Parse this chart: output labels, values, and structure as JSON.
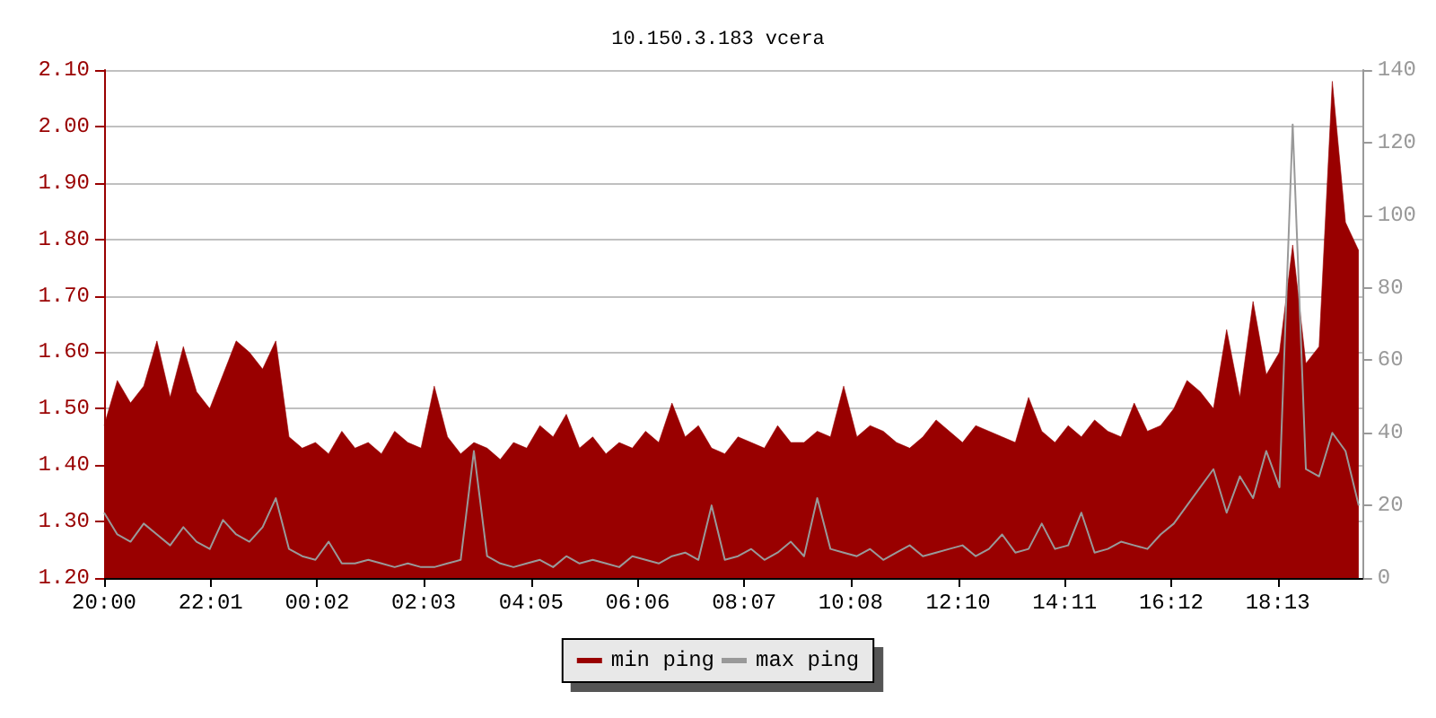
{
  "chart_data": {
    "type": "area",
    "title": "10.150.3.183 vcera",
    "x": [
      "--01-01T20:00",
      "--01-01T20:15",
      "--01-01T20:30",
      "--01-01T20:45",
      "--01-01T21:00",
      "--01-01T21:15",
      "--01-01T21:30",
      "--01-01T21:45",
      "--01-01T22:00",
      "--01-01T22:15",
      "--01-01T22:30",
      "--01-01T22:45",
      "--01-01T23:00",
      "--01-01T23:15",
      "--01-01T23:30",
      "--01-01T23:45",
      "--01-02T00:00",
      "--01-02T00:15",
      "--01-02T00:30",
      "--01-02T00:45",
      "--01-02T01:00",
      "--01-02T01:15",
      "--01-02T01:30",
      "--01-02T01:45",
      "--01-02T02:00",
      "--01-02T02:15",
      "--01-02T02:30",
      "--01-02T02:45",
      "--01-02T03:00",
      "--01-02T03:15",
      "--01-02T03:30",
      "--01-02T03:45",
      "--01-02T04:00",
      "--01-02T04:15",
      "--01-02T04:30",
      "--01-02T04:45",
      "--01-02T05:00",
      "--01-02T05:15",
      "--01-02T05:30",
      "--01-02T05:45",
      "--01-02T06:00",
      "--01-02T06:15",
      "--01-02T06:30",
      "--01-02T06:45",
      "--01-02T07:00",
      "--01-02T07:15",
      "--01-02T07:30",
      "--01-02T07:45",
      "--01-02T08:00",
      "--01-02T08:15",
      "--01-02T08:30",
      "--01-02T08:45",
      "--01-02T09:00",
      "--01-02T09:15",
      "--01-02T09:30",
      "--01-02T09:45",
      "--01-02T10:00",
      "--01-02T10:15",
      "--01-02T10:30",
      "--01-02T10:45",
      "--01-02T11:00",
      "--01-02T11:15",
      "--01-02T11:30",
      "--01-02T11:45",
      "--01-02T12:00",
      "--01-02T12:15",
      "--01-02T12:30",
      "--01-02T12:45",
      "--01-02T13:00",
      "--01-02T13:15",
      "--01-02T13:30",
      "--01-02T13:45",
      "--01-02T14:00",
      "--01-02T14:15",
      "--01-02T14:30",
      "--01-02T14:45",
      "--01-02T15:00",
      "--01-02T15:15",
      "--01-02T15:30",
      "--01-02T15:45",
      "--01-02T16:00",
      "--01-02T16:15",
      "--01-02T16:30",
      "--01-02T16:45",
      "--01-02T17:00",
      "--01-02T17:15",
      "--01-02T17:30",
      "--01-02T17:45",
      "--01-02T18:00",
      "--01-02T18:15",
      "--01-02T18:30",
      "--01-02T18:45",
      "--01-02T19:00",
      "--01-02T19:15",
      "--01-02T19:30",
      "--01-02T19:45"
    ],
    "series": [
      {
        "name": "min ping",
        "color": "#990000",
        "values": [
          1.47,
          1.55,
          1.51,
          1.54,
          1.62,
          1.52,
          1.61,
          1.53,
          1.5,
          1.56,
          1.62,
          1.6,
          1.57,
          1.62,
          1.45,
          1.43,
          1.44,
          1.42,
          1.46,
          1.43,
          1.44,
          1.42,
          1.46,
          1.44,
          1.43,
          1.54,
          1.45,
          1.42,
          1.44,
          1.43,
          1.41,
          1.44,
          1.43,
          1.47,
          1.45,
          1.49,
          1.43,
          1.45,
          1.42,
          1.44,
          1.43,
          1.46,
          1.44,
          1.51,
          1.45,
          1.47,
          1.43,
          1.42,
          1.45,
          1.44,
          1.43,
          1.47,
          1.44,
          1.44,
          1.46,
          1.45,
          1.54,
          1.45,
          1.47,
          1.46,
          1.44,
          1.43,
          1.45,
          1.48,
          1.46,
          1.44,
          1.47,
          1.46,
          1.45,
          1.44,
          1.52,
          1.46,
          1.44,
          1.47,
          1.45,
          1.48,
          1.46,
          1.45,
          1.51,
          1.46,
          1.47,
          1.5,
          1.55,
          1.53,
          1.5,
          1.64,
          1.52,
          1.69,
          1.56,
          1.6,
          1.79,
          1.58,
          1.61,
          2.08,
          1.83,
          1.78
        ]
      },
      {
        "name": "max ping",
        "type": "line",
        "axis": "y2",
        "color": "#999999",
        "values": [
          18,
          12,
          10,
          15,
          12,
          9,
          14,
          10,
          8,
          16,
          12,
          10,
          14,
          22,
          8,
          6,
          5,
          10,
          4,
          4,
          5,
          4,
          3,
          4,
          3,
          3,
          4,
          5,
          35,
          6,
          4,
          3,
          4,
          5,
          3,
          6,
          4,
          5,
          4,
          3,
          6,
          5,
          4,
          6,
          7,
          5,
          20,
          5,
          6,
          8,
          5,
          7,
          10,
          6,
          22,
          8,
          7,
          6,
          8,
          5,
          7,
          9,
          6,
          7,
          8,
          9,
          6,
          8,
          12,
          7,
          8,
          15,
          8,
          9,
          18,
          7,
          8,
          10,
          9,
          8,
          12,
          15,
          20,
          25,
          30,
          18,
          28,
          22,
          35,
          25,
          125,
          30,
          28,
          40,
          35,
          20
        ]
      }
    ],
    "xlim": [
      "--01-01T20:00",
      "--01-02T19:50"
    ],
    "xticks": [
      {
        "value": "--01-01T20:00",
        "label": "20:00"
      },
      {
        "value": "--01-01T22:01",
        "label": "22:01"
      },
      {
        "value": "--01-02T00:02",
        "label": "00:02"
      },
      {
        "value": "--01-02T02:03",
        "label": "02:03"
      },
      {
        "value": "--01-02T04:05",
        "label": "04:05"
      },
      {
        "value": "--01-02T06:06",
        "label": "06:06"
      },
      {
        "value": "--01-02T08:07",
        "label": "08:07"
      },
      {
        "value": "--01-02T10:08",
        "label": "10:08"
      },
      {
        "value": "--01-02T12:10",
        "label": "12:10"
      },
      {
        "value": "--01-02T14:11",
        "label": "14:11"
      },
      {
        "value": "--01-02T16:12",
        "label": "16:12"
      },
      {
        "value": "--01-02T18:13",
        "label": "18:13"
      }
    ],
    "ylim": [
      1.2,
      2.1
    ],
    "yticks": [
      {
        "value": 1.2,
        "label": "1.20"
      },
      {
        "value": 1.3,
        "label": "1.30"
      },
      {
        "value": 1.4,
        "label": "1.40"
      },
      {
        "value": 1.5,
        "label": "1.50"
      },
      {
        "value": 1.6,
        "label": "1.60"
      },
      {
        "value": 1.7,
        "label": "1.70"
      },
      {
        "value": 1.8,
        "label": "1.80"
      },
      {
        "value": 1.9,
        "label": "1.90"
      },
      {
        "value": 2.0,
        "label": "2.00"
      },
      {
        "value": 2.1,
        "label": "2.10"
      }
    ],
    "y2lim": [
      0,
      140
    ],
    "y2ticks": [
      0,
      20,
      40,
      60,
      80,
      100,
      120,
      140
    ],
    "grid": "y",
    "legend": "bottom",
    "marker": "none",
    "line_style": "solid"
  }
}
